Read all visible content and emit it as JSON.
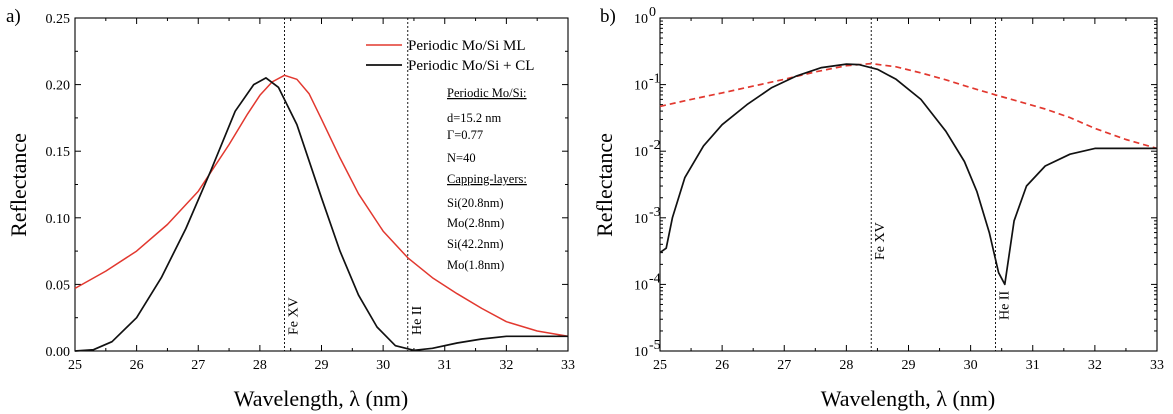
{
  "chart_data": [
    {
      "panel_label": "a)",
      "type": "line",
      "xlabel": "Wavelength, λ (nm)",
      "ylabel": "Reflectance",
      "xlim": [
        25,
        33
      ],
      "ylim": [
        0,
        0.25
      ],
      "xticks": [
        "25",
        "26",
        "27",
        "28",
        "29",
        "30",
        "31",
        "32",
        "33"
      ],
      "yticks": [
        "0.00",
        "0.05",
        "0.10",
        "0.15",
        "0.20",
        "0.25"
      ],
      "legend_position": "top-right",
      "colors": {
        "red": "#e2382f",
        "black": "#111111"
      },
      "series": [
        {
          "name": "Periodic Mo/Si ML",
          "color": "#e2382f",
          "x": [
            25.0,
            25.5,
            26.0,
            26.5,
            27.0,
            27.5,
            27.8,
            28.0,
            28.2,
            28.4,
            28.6,
            28.8,
            29.0,
            29.3,
            29.6,
            30.0,
            30.4,
            30.8,
            31.2,
            31.6,
            32.0,
            32.5,
            33.0
          ],
          "values": [
            0.047,
            0.06,
            0.075,
            0.095,
            0.12,
            0.155,
            0.178,
            0.192,
            0.202,
            0.207,
            0.204,
            0.193,
            0.174,
            0.145,
            0.118,
            0.09,
            0.07,
            0.055,
            0.043,
            0.032,
            0.022,
            0.015,
            0.011
          ]
        },
        {
          "name": "Periodic Mo/Si + CL",
          "color": "#111111",
          "x": [
            25.0,
            25.3,
            25.6,
            26.0,
            26.4,
            26.8,
            27.2,
            27.6,
            27.9,
            28.1,
            28.3,
            28.6,
            29.0,
            29.3,
            29.6,
            29.9,
            30.2,
            30.5,
            30.8,
            31.2,
            31.6,
            32.0,
            32.5,
            33.0
          ],
          "values": [
            0.0,
            0.001,
            0.007,
            0.025,
            0.055,
            0.092,
            0.135,
            0.18,
            0.2,
            0.205,
            0.198,
            0.17,
            0.115,
            0.075,
            0.042,
            0.018,
            0.004,
            0.0005,
            0.002,
            0.006,
            0.009,
            0.011,
            0.011,
            0.011
          ]
        }
      ],
      "vlines": [
        {
          "x": 28.4,
          "label": "Fe XV"
        },
        {
          "x": 30.4,
          "label": "He II"
        }
      ],
      "annotations": [
        {
          "text": "Periodic Mo/Si:",
          "underline": true
        },
        {
          "text": "d=15.2 nm",
          "underline": false
        },
        {
          "text": "Γ=0.77",
          "underline": false
        },
        {
          "text": "N=40",
          "underline": false
        },
        {
          "text": "Capping-layers:",
          "underline": true
        },
        {
          "text": "Si(20.8nm)",
          "underline": false
        },
        {
          "text": "Mo(2.8nm)",
          "underline": false
        },
        {
          "text": "Si(42.2nm)",
          "underline": false
        },
        {
          "text": "Mo(1.8nm)",
          "underline": false
        }
      ]
    },
    {
      "panel_label": "b)",
      "type": "line",
      "xlabel": "Wavelength, λ (nm)",
      "ylabel": "Reflectance",
      "xlim": [
        25,
        33
      ],
      "ylim": [
        1e-05,
        1
      ],
      "yscale": "log",
      "xticks": [
        "25",
        "26",
        "27",
        "28",
        "29",
        "30",
        "31",
        "32",
        "33"
      ],
      "yticks": [
        {
          "base": "10",
          "exp": "0"
        },
        {
          "base": "10",
          "exp": "-1"
        },
        {
          "base": "10",
          "exp": "-2"
        },
        {
          "base": "10",
          "exp": "-3"
        },
        {
          "base": "10",
          "exp": "-4"
        },
        {
          "base": "10",
          "exp": "-5"
        }
      ],
      "series": [
        {
          "color": "#e2382f",
          "dashed": true,
          "x": [
            25.0,
            25.5,
            26.0,
            26.5,
            27.0,
            27.5,
            28.0,
            28.4,
            28.8,
            29.2,
            29.6,
            30.0,
            30.4,
            30.8,
            31.2,
            31.6,
            32.0,
            32.5,
            33.0
          ],
          "values": [
            0.047,
            0.06,
            0.075,
            0.095,
            0.12,
            0.155,
            0.192,
            0.207,
            0.185,
            0.15,
            0.118,
            0.09,
            0.07,
            0.055,
            0.043,
            0.032,
            0.022,
            0.015,
            0.011
          ]
        },
        {
          "color": "#111111",
          "dashed": false,
          "x": [
            25.0,
            25.1,
            25.2,
            25.4,
            25.7,
            26.0,
            26.4,
            26.8,
            27.2,
            27.6,
            28.0,
            28.2,
            28.5,
            28.8,
            29.2,
            29.6,
            29.9,
            30.1,
            30.3,
            30.45,
            30.55,
            30.7,
            30.9,
            31.2,
            31.6,
            32.0,
            32.5,
            33.0
          ],
          "values": [
            0.0003,
            0.00035,
            0.001,
            0.004,
            0.012,
            0.025,
            0.05,
            0.09,
            0.135,
            0.18,
            0.203,
            0.2,
            0.17,
            0.12,
            0.06,
            0.02,
            0.007,
            0.0025,
            0.0006,
            0.00015,
            0.0001,
            0.0009,
            0.003,
            0.006,
            0.009,
            0.011,
            0.011,
            0.011
          ]
        }
      ],
      "vlines": [
        {
          "x": 28.4,
          "label": "Fe XV"
        },
        {
          "x": 30.4,
          "label": "He II"
        }
      ]
    }
  ]
}
